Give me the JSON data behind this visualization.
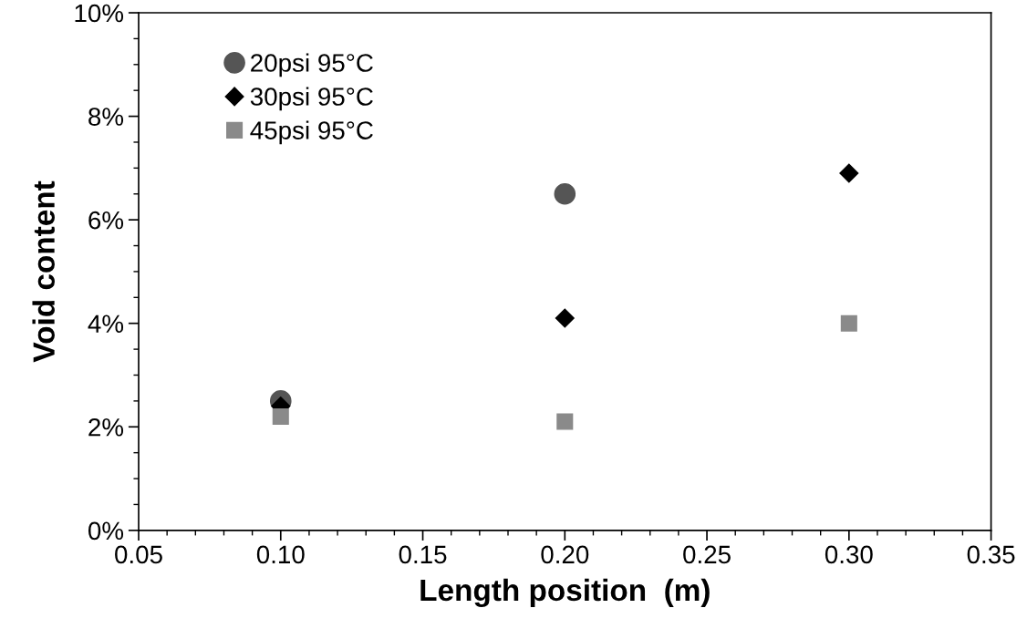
{
  "chart_data": {
    "type": "scatter",
    "xlabel": "Length position  (m)",
    "ylabel": "Void content",
    "series": [
      {
        "name": "20psi 95°C",
        "color": "#555555",
        "marker": "circle",
        "x": [
          0.1,
          0.2
        ],
        "values": [
          2.5,
          6.5
        ]
      },
      {
        "name": "30psi 95°C",
        "color": "#000000",
        "marker": "diamond",
        "x": [
          0.1,
          0.2,
          0.3
        ],
        "values": [
          2.4,
          4.1,
          6.9
        ]
      },
      {
        "name": "45psi 95°C",
        "color": "#8a8a8a",
        "marker": "square",
        "x": [
          0.1,
          0.2,
          0.3
        ],
        "values": [
          2.2,
          2.1,
          4.0
        ]
      }
    ],
    "xlim": [
      0.05,
      0.35
    ],
    "xticks": [
      {
        "value": 0.05,
        "label": "0.05"
      },
      {
        "value": 0.1,
        "label": "0.10"
      },
      {
        "value": 0.15,
        "label": "0.15"
      },
      {
        "value": 0.2,
        "label": "0.20"
      },
      {
        "value": 0.25,
        "label": "0.25"
      },
      {
        "value": 0.3,
        "label": "0.30"
      },
      {
        "value": 0.35,
        "label": "0.35"
      }
    ],
    "ylim": [
      0,
      10
    ],
    "yticks": [
      {
        "value": 0,
        "label": "0%"
      },
      {
        "value": 2,
        "label": "2%"
      },
      {
        "value": 4,
        "label": "4%"
      },
      {
        "value": 6,
        "label": "6%"
      },
      {
        "value": 8,
        "label": "8%"
      },
      {
        "value": 10,
        "label": "10%"
      }
    ],
    "grid": false,
    "legend": "top left"
  }
}
